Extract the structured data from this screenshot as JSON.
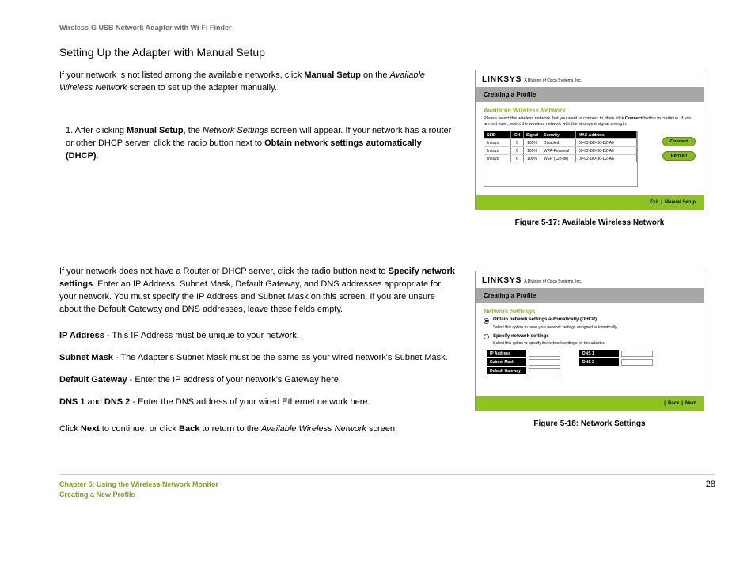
{
  "header": "Wireless-G USB Network Adapter with Wi-Fi Finder",
  "sectionTitle": "Setting Up the Adapter with Manual Setup",
  "intro": {
    "p1a": "If your network is not listed among the available networks, click ",
    "p1b": "Manual Setup",
    "p1c": " on the ",
    "p1d": "Available Wireless Network",
    "p1e": " screen to set up the adapter manually."
  },
  "step1": {
    "num": "1.",
    "a": "After clicking ",
    "b": "Manual Setup",
    "c": ", the ",
    "d": "Network Settings",
    "e": " screen will appear. If your network has a router or other DHCP server, click the radio button next to ",
    "f": "Obtain network settings automatically (DHCP)",
    "g": "."
  },
  "para2": {
    "a": "If your network does not have a Router or DHCP server, click the radio button next to ",
    "b": "Specify network settings",
    "c": ". Enter an IP Address, Subnet Mask, Default Gateway, and DNS addresses appropriate for your network. You must specify the IP Address and Subnet Mask on this screen. If you are unsure about the Default Gateway and DNS addresses, leave these fields empty."
  },
  "defs": {
    "ip_l": "IP Address",
    "ip_t": " - This IP Address must be unique to your network.",
    "sm_l": "Subnet Mask",
    "sm_t": " - The Adapter's Subnet Mask must be the same as your wired network's Subnet Mask.",
    "gw_l": "Default Gateway",
    "gw_t": " - Enter the IP address of your network's Gateway here.",
    "dns_l1": "DNS 1",
    "dns_and": " and ",
    "dns_l2": "DNS 2",
    "dns_t": " - Enter the DNS address of your wired Ethernet network here."
  },
  "final": {
    "a": "Click ",
    "b": "Next",
    "c": " to continue, or click ",
    "d": "Back",
    "e": " to return to the ",
    "f": "Available Wireless Network",
    "g": " screen."
  },
  "fig1": {
    "caption": "Figure 5-17: Available Wireless Network",
    "brand": "LINKSYS",
    "brandSub": "A Division of Cisco Systems, Inc.",
    "titleBar": "Creating a Profile",
    "subhead": "Available Wireless Network",
    "desc1": "Please select the wireless network that you want to connect to, then click ",
    "descBold": "Connect",
    "desc2": " button to continue. If you are not sure, select the wireless network with the strongest signal strength.",
    "cols": {
      "ssid": "SSID",
      "ch": "CH",
      "signal": "Signal",
      "security": "Security",
      "mac": "MAC Address"
    },
    "rows": [
      {
        "ssid": "linksys",
        "ch": "6",
        "signal": "100%",
        "security": "Disabled",
        "mac": "00-02-DD-30-D2-A0"
      },
      {
        "ssid": "linksys",
        "ch": "6",
        "signal": "100%",
        "security": "WPA-Personal",
        "mac": "00-02-DD-30-D2-A0"
      },
      {
        "ssid": "linksys",
        "ch": "6",
        "signal": "100%",
        "security": "WEP (128-bit)",
        "mac": "00-02-DD-30-D2-AE"
      }
    ],
    "btnConnect": "Connect",
    "btnRefresh": "Refresh",
    "footExit": "Exit",
    "footManual": "Manual Setup"
  },
  "fig2": {
    "caption": "Figure 5-18: Network Settings",
    "brand": "LINKSYS",
    "brandSub": "A Division of Cisco Systems, Inc.",
    "titleBar": "Creating a Profile",
    "subhead": "Network Settings",
    "opt1": "Obtain network settings automatically (DHCP)",
    "opt1help": "Select this option to have your network settings assigned automatically.",
    "opt2": "Specify network settings",
    "opt2help": "Select this option to specify the network settings for the adapter.",
    "labels": {
      "ip": "IP Address",
      "sm": "Subnet Mask",
      "gw": "Default Gateway",
      "d1": "DNS 1",
      "d2": "DNS 2"
    },
    "footBack": "Back",
    "footNext": "Next"
  },
  "footer": {
    "chapter": "Chapter 5: Using the Wireless Network Monitor",
    "section": "Creating a New Profile",
    "page": "28"
  },
  "colors": {
    "linksys_green": "#8fc31f",
    "subhead_green": "#8fb43a",
    "footer_green": "#7aa321"
  }
}
